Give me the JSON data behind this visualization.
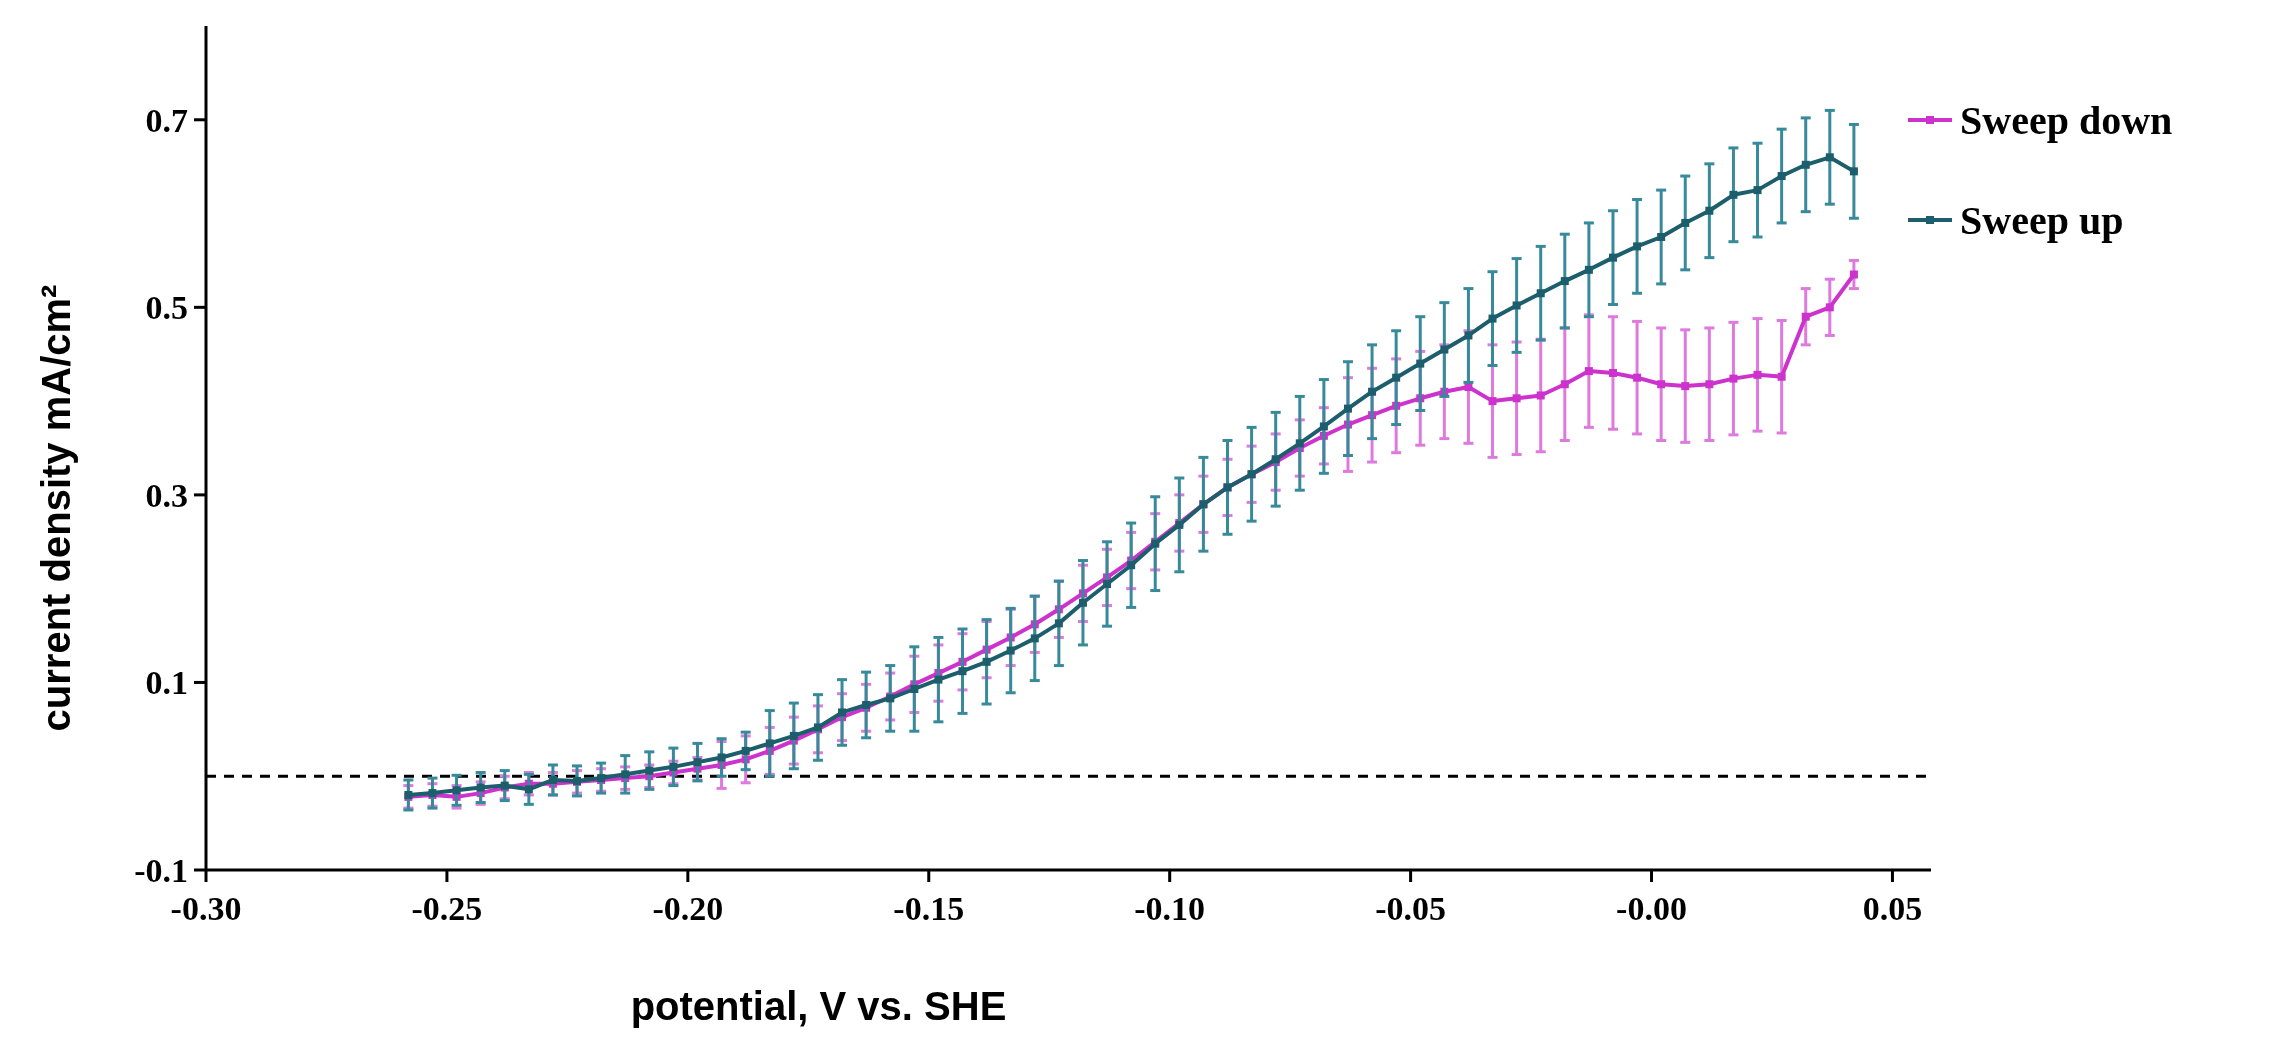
{
  "chart_data": {
    "type": "line",
    "xlabel": "potential, V vs. SHE",
    "ylabel": "current density  mA/cm²",
    "x": [
      -0.258,
      -0.253,
      -0.248,
      -0.243,
      -0.238,
      -0.233,
      -0.228,
      -0.223,
      -0.218,
      -0.213,
      -0.208,
      -0.203,
      -0.198,
      -0.193,
      -0.188,
      -0.183,
      -0.178,
      -0.173,
      -0.168,
      -0.163,
      -0.158,
      -0.153,
      -0.148,
      -0.143,
      -0.138,
      -0.133,
      -0.128,
      -0.123,
      -0.118,
      -0.113,
      -0.108,
      -0.103,
      -0.098,
      -0.093,
      -0.088,
      -0.083,
      -0.078,
      -0.073,
      -0.068,
      -0.063,
      -0.058,
      -0.053,
      -0.048,
      -0.043,
      -0.038,
      -0.033,
      -0.028,
      -0.023,
      -0.018,
      -0.013,
      -0.008,
      -0.003,
      0.002,
      0.007,
      0.012,
      0.017,
      0.022,
      0.027,
      0.032,
      0.037,
      0.042
    ],
    "series": [
      {
        "name": "Sweep down",
        "color": "#cc33cc",
        "values": [
          -0.022,
          -0.02,
          -0.022,
          -0.018,
          -0.012,
          -0.008,
          -0.008,
          -0.006,
          -0.004,
          -0.002,
          0.0,
          0.004,
          0.008,
          0.012,
          0.018,
          0.027,
          0.038,
          0.05,
          0.063,
          0.073,
          0.085,
          0.098,
          0.11,
          0.122,
          0.135,
          0.148,
          0.162,
          0.178,
          0.195,
          0.212,
          0.23,
          0.25,
          0.27,
          0.29,
          0.308,
          0.322,
          0.335,
          0.35,
          0.363,
          0.375,
          0.385,
          0.395,
          0.403,
          0.41,
          0.415,
          0.4,
          0.403,
          0.406,
          0.418,
          0.432,
          0.43,
          0.425,
          0.418,
          0.416,
          0.418,
          0.424,
          0.428,
          0.426,
          0.49,
          0.5,
          0.535
        ],
        "errors": [
          0.012,
          0.012,
          0.012,
          0.012,
          0.012,
          0.012,
          0.012,
          0.012,
          0.012,
          0.012,
          0.012,
          0.012,
          0.012,
          0.025,
          0.025,
          0.025,
          0.025,
          0.025,
          0.025,
          0.025,
          0.025,
          0.03,
          0.03,
          0.03,
          0.03,
          0.03,
          0.03,
          0.03,
          0.03,
          0.03,
          0.03,
          0.03,
          0.03,
          0.03,
          0.03,
          0.03,
          0.03,
          0.03,
          0.03,
          0.05,
          0.05,
          0.05,
          0.05,
          0.05,
          0.06,
          0.06,
          0.06,
          0.06,
          0.06,
          0.06,
          0.06,
          0.06,
          0.06,
          0.06,
          0.06,
          0.06,
          0.06,
          0.06,
          0.03,
          0.03,
          0.015
        ]
      },
      {
        "name": "Sweep up",
        "color": "#1d5e6c",
        "values": [
          -0.02,
          -0.018,
          -0.015,
          -0.012,
          -0.01,
          -0.014,
          -0.004,
          -0.005,
          -0.002,
          0.002,
          0.006,
          0.01,
          0.015,
          0.02,
          0.027,
          0.035,
          0.043,
          0.052,
          0.068,
          0.076,
          0.083,
          0.093,
          0.103,
          0.112,
          0.122,
          0.134,
          0.147,
          0.163,
          0.185,
          0.205,
          0.225,
          0.248,
          0.268,
          0.29,
          0.308,
          0.322,
          0.338,
          0.355,
          0.373,
          0.392,
          0.41,
          0.425,
          0.44,
          0.455,
          0.47,
          0.488,
          0.502,
          0.515,
          0.528,
          0.54,
          0.553,
          0.565,
          0.575,
          0.59,
          0.603,
          0.62,
          0.625,
          0.64,
          0.652,
          0.66,
          0.645
        ],
        "errors": [
          0.016,
          0.016,
          0.016,
          0.016,
          0.016,
          0.016,
          0.016,
          0.016,
          0.016,
          0.02,
          0.02,
          0.02,
          0.02,
          0.02,
          0.02,
          0.035,
          0.035,
          0.035,
          0.035,
          0.035,
          0.035,
          0.045,
          0.045,
          0.045,
          0.045,
          0.045,
          0.045,
          0.045,
          0.045,
          0.045,
          0.045,
          0.05,
          0.05,
          0.05,
          0.05,
          0.05,
          0.05,
          0.05,
          0.05,
          0.05,
          0.05,
          0.05,
          0.05,
          0.05,
          0.05,
          0.05,
          0.05,
          0.05,
          0.05,
          0.05,
          0.05,
          0.05,
          0.05,
          0.05,
          0.05,
          0.05,
          0.05,
          0.05,
          0.05,
          0.05,
          0.05
        ]
      }
    ],
    "xlim": [
      -0.3,
      0.058
    ],
    "ylim": [
      -0.1,
      0.8
    ],
    "xticks": [
      {
        "value": -0.3,
        "label": "-0.30"
      },
      {
        "value": -0.25,
        "label": "-0.25"
      },
      {
        "value": -0.2,
        "label": "-0.20"
      },
      {
        "value": -0.15,
        "label": "-0.15"
      },
      {
        "value": -0.1,
        "label": "-0.10"
      },
      {
        "value": -0.05,
        "label": "-0.05"
      },
      {
        "value": 0,
        "label": "-0.00"
      },
      {
        "value": 0.05,
        "label": "0.05"
      }
    ],
    "yticks": [
      -0.1,
      0.1,
      0.3,
      0.5,
      0.7
    ],
    "ref_lines": [
      {
        "axis": "y",
        "value": 0,
        "color": "#000000",
        "line_style": "dashed"
      }
    ],
    "legend": "top right",
    "marker": "square",
    "line_style": "solid",
    "grid": false
  }
}
